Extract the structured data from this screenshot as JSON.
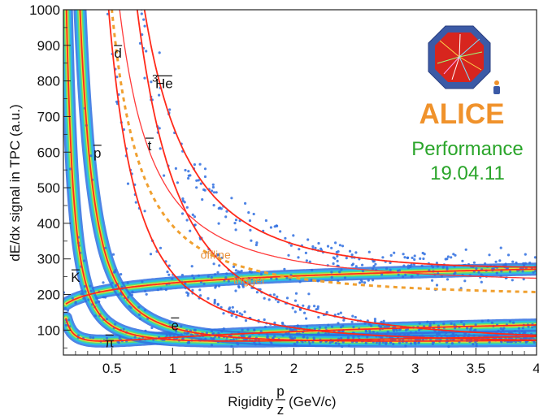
{
  "chart_data": {
    "type": "scatter",
    "xlabel": "Rigidity",
    "xlabel_fraction": {
      "numerator": "p",
      "denominator": "z"
    },
    "xlabel_unit": "(GeV/c)",
    "ylabel": "dE/dx signal in TPC (a.u.)",
    "xlim": [
      0.1,
      4.0
    ],
    "ylim": [
      30,
      1000
    ],
    "x_ticks": [
      {
        "value": 0.5,
        "label": "0.5"
      },
      {
        "value": 1,
        "label": "1"
      },
      {
        "value": 1.5,
        "label": "1.5"
      },
      {
        "value": 2,
        "label": "2"
      },
      {
        "value": 2.5,
        "label": "2.5"
      },
      {
        "value": 3,
        "label": "3"
      },
      {
        "value": 3.5,
        "label": "3.5"
      },
      {
        "value": 4,
        "label": "4"
      }
    ],
    "y_ticks": [
      {
        "value": 100,
        "label": "100"
      },
      {
        "value": 200,
        "label": "200"
      },
      {
        "value": 300,
        "label": "300"
      },
      {
        "value": 400,
        "label": "400"
      },
      {
        "value": 500,
        "label": "500"
      },
      {
        "value": 600,
        "label": "600"
      },
      {
        "value": 700,
        "label": "700"
      },
      {
        "value": 800,
        "label": "800"
      },
      {
        "value": 900,
        "label": "900"
      },
      {
        "value": 1000,
        "label": "1000"
      }
    ],
    "grid": false,
    "bands": [
      {
        "label": "π",
        "mass": 0.1396,
        "charge": 1,
        "color": "#ff2a1a",
        "label_pos": {
          "x": 0.48,
          "y": 52
        }
      },
      {
        "label": "e",
        "mass": 0.000511,
        "charge": 1,
        "color": "#ff2a1a",
        "label_pos": {
          "x": 1.02,
          "y": 100
        }
      },
      {
        "label": "K",
        "mass": 0.4937,
        "charge": 1,
        "color": "#ff2a1a",
        "label_pos": {
          "x": 0.2,
          "y": 235
        }
      },
      {
        "label": "p",
        "mass": 0.9383,
        "charge": 1,
        "color": "#ff2a1a",
        "label_pos": {
          "x": 0.38,
          "y": 585
        }
      },
      {
        "label": "d",
        "mass": 1.8756,
        "charge": 1,
        "color": "#ff2a1a",
        "label_pos": {
          "x": 0.55,
          "y": 865
        }
      },
      {
        "label": "t",
        "mass": 2.8089,
        "charge": 1,
        "color": "#ff2a1a",
        "label_pos": {
          "x": 0.81,
          "y": 605
        }
      },
      {
        "label": "He",
        "label_prefix": "3",
        "mass": 2.8084,
        "charge": 2,
        "color": "#ff2a1a",
        "label_pos": {
          "x": 0.93,
          "y": 780
        }
      }
    ],
    "cuts": [
      {
        "label": "offline",
        "style": "solid",
        "color": "#ff3a3a",
        "asymptote": 225,
        "label_pos": {
          "x": 1.23,
          "y": 300
        }
      },
      {
        "label": "trigger",
        "style": "dashed",
        "color": "#f0a030",
        "asymptote": 190,
        "label_pos": {
          "x": 1.5,
          "y": 230
        }
      }
    ]
  },
  "logo": {
    "name": "ALICE",
    "text": "ALICE",
    "primary_color": "#f0922b",
    "octagon_color": "#3b5aa6",
    "inner_color": "#d7251e"
  },
  "annotation": {
    "performance": "Performance",
    "date": "19.04.11",
    "color": "#2aa52a"
  }
}
